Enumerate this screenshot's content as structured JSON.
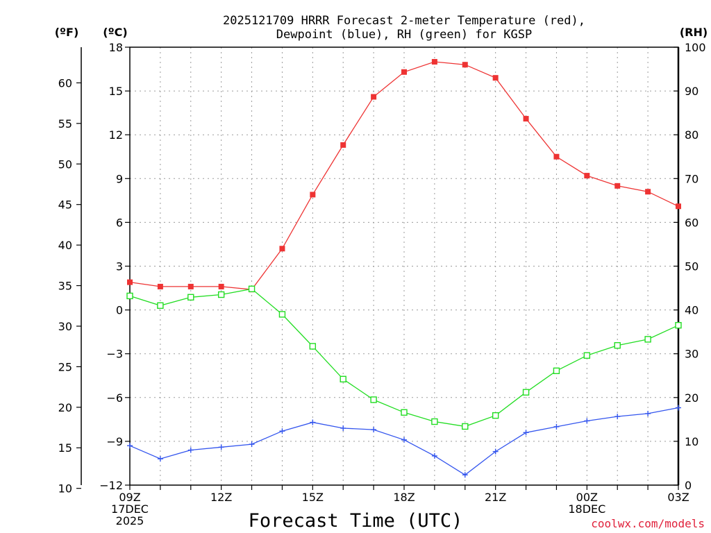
{
  "chart_data": {
    "type": "line",
    "title_lines": [
      "2025121709 HRRR Forecast 2-meter Temperature (red),",
      "Dewpoint (blue), RH (green) for KGSP"
    ],
    "xlabel": "Forecast Time (UTC)",
    "credit": "coolwx.com/models",
    "unit_labels": {
      "fahrenheit": "(ºF)",
      "celsius": "(ºC)",
      "rh": "(RH)"
    },
    "x_hours": [
      0,
      1,
      2,
      3,
      4,
      5,
      6,
      7,
      8,
      9,
      10,
      11,
      12,
      13,
      14,
      15,
      16,
      17,
      18
    ],
    "x_ticks": [
      {
        "hour": 0,
        "lines": [
          "09Z",
          "17DEC",
          "2025"
        ]
      },
      {
        "hour": 3,
        "lines": [
          "12Z"
        ]
      },
      {
        "hour": 6,
        "lines": [
          "15Z"
        ]
      },
      {
        "hour": 9,
        "lines": [
          "18Z"
        ]
      },
      {
        "hour": 12,
        "lines": [
          "21Z"
        ]
      },
      {
        "hour": 15,
        "lines": [
          "00Z",
          "18DEC"
        ]
      },
      {
        "hour": 18,
        "lines": [
          "03Z"
        ]
      }
    ],
    "y_celsius": {
      "range": [
        -12,
        18
      ],
      "ticks": [
        18,
        15,
        12,
        9,
        6,
        3,
        0,
        -3,
        -6,
        -9,
        -12
      ],
      "tick_labels": [
        "18",
        "15",
        "12",
        "9",
        "6",
        "3",
        "0",
        "−3",
        "−6",
        "−9",
        "−12"
      ]
    },
    "y_fahrenheit": {
      "range": [
        10.4,
        64.4
      ],
      "ticks": [
        60,
        55,
        50,
        45,
        40,
        35,
        30,
        25,
        20,
        15,
        10
      ]
    },
    "y_rh": {
      "range": [
        0,
        100
      ],
      "ticks": [
        100,
        90,
        80,
        70,
        60,
        50,
        40,
        30,
        20,
        10,
        0
      ]
    },
    "grid": true,
    "series": [
      {
        "name": "Temperature",
        "axis": "celsius",
        "color": "#ee3333",
        "marker": "filled-square",
        "values": [
          1.9,
          1.6,
          1.6,
          1.6,
          1.4,
          4.2,
          7.9,
          11.3,
          14.6,
          16.3,
          17.0,
          16.8,
          15.9,
          13.1,
          10.5,
          9.2,
          8.5,
          8.1,
          7.1
        ]
      },
      {
        "name": "Dewpoint",
        "axis": "celsius",
        "color": "#3355ee",
        "marker": "plus",
        "values": [
          -9.3,
          -10.2,
          -9.6,
          -9.4,
          -9.2,
          -8.3,
          -7.7,
          -8.1,
          -8.2,
          -8.9,
          -10.0,
          -11.3,
          -9.7,
          -8.4,
          -8.0,
          -7.6,
          -7.3,
          -7.1,
          -6.7
        ]
      },
      {
        "name": "RH",
        "axis": "rh",
        "color": "#22dd22",
        "marker": "open-square",
        "values": [
          43.2,
          41.0,
          42.9,
          43.5,
          44.8,
          39.0,
          31.7,
          24.2,
          19.5,
          16.6,
          14.5,
          13.4,
          15.9,
          21.2,
          26.1,
          29.6,
          31.9,
          33.3,
          36.5
        ]
      }
    ]
  }
}
